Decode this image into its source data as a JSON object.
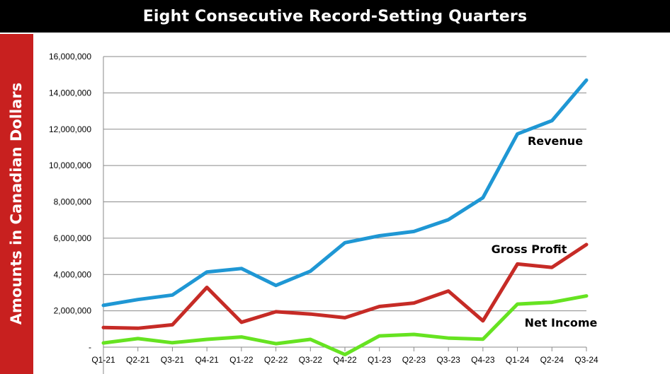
{
  "title": "Eight Consecutive Record-Setting Quarters",
  "ylabel": "Amounts in Canadian Dollars",
  "colors": {
    "title_bg": "#000000",
    "side_band": "#c8201f",
    "revenue": "#1f97d4",
    "gross_profit": "#c62b26",
    "net_income": "#66e321",
    "grid": "#8a8a8a"
  },
  "chart_data": {
    "type": "line",
    "title": "Eight Consecutive Record-Setting Quarters",
    "xlabel": "",
    "ylabel": "Amounts in Canadian Dollars",
    "categories": [
      "Q1-21",
      "Q2-21",
      "Q3-21",
      "Q4-21",
      "Q1-22",
      "Q2-22",
      "Q3-22",
      "Q4-22",
      "Q1-23",
      "Q2-23",
      "Q3-23",
      "Q4-23",
      "Q1-24",
      "Q2-24",
      "Q3-24"
    ],
    "ylim": [
      0,
      16000000
    ],
    "yticks": [
      0,
      2000000,
      4000000,
      6000000,
      8000000,
      10000000,
      12000000,
      14000000,
      16000000
    ],
    "ytick_labels": [
      "-",
      "2,000,000",
      "4,000,000",
      "6,000,000",
      "8,000,000",
      "10,000,000",
      "12,000,000",
      "14,000,000",
      "16,000,000"
    ],
    "grid": true,
    "series": [
      {
        "name": "Revenue",
        "color": "#1f97d4",
        "values": [
          2300000,
          2620000,
          2870000,
          4140000,
          4330000,
          3400000,
          4180000,
          5750000,
          6130000,
          6370000,
          7020000,
          8230000,
          11740000,
          12470000,
          14700000
        ]
      },
      {
        "name": "Gross Profit",
        "color": "#c62b26",
        "values": [
          1080000,
          1040000,
          1230000,
          3290000,
          1370000,
          1950000,
          1820000,
          1620000,
          2240000,
          2430000,
          3090000,
          1450000,
          4580000,
          4390000,
          5650000
        ]
      },
      {
        "name": "Net Income",
        "color": "#66e321",
        "values": [
          230000,
          470000,
          240000,
          430000,
          560000,
          190000,
          430000,
          -410000,
          620000,
          700000,
          500000,
          440000,
          2370000,
          2470000,
          2820000
        ]
      }
    ]
  }
}
